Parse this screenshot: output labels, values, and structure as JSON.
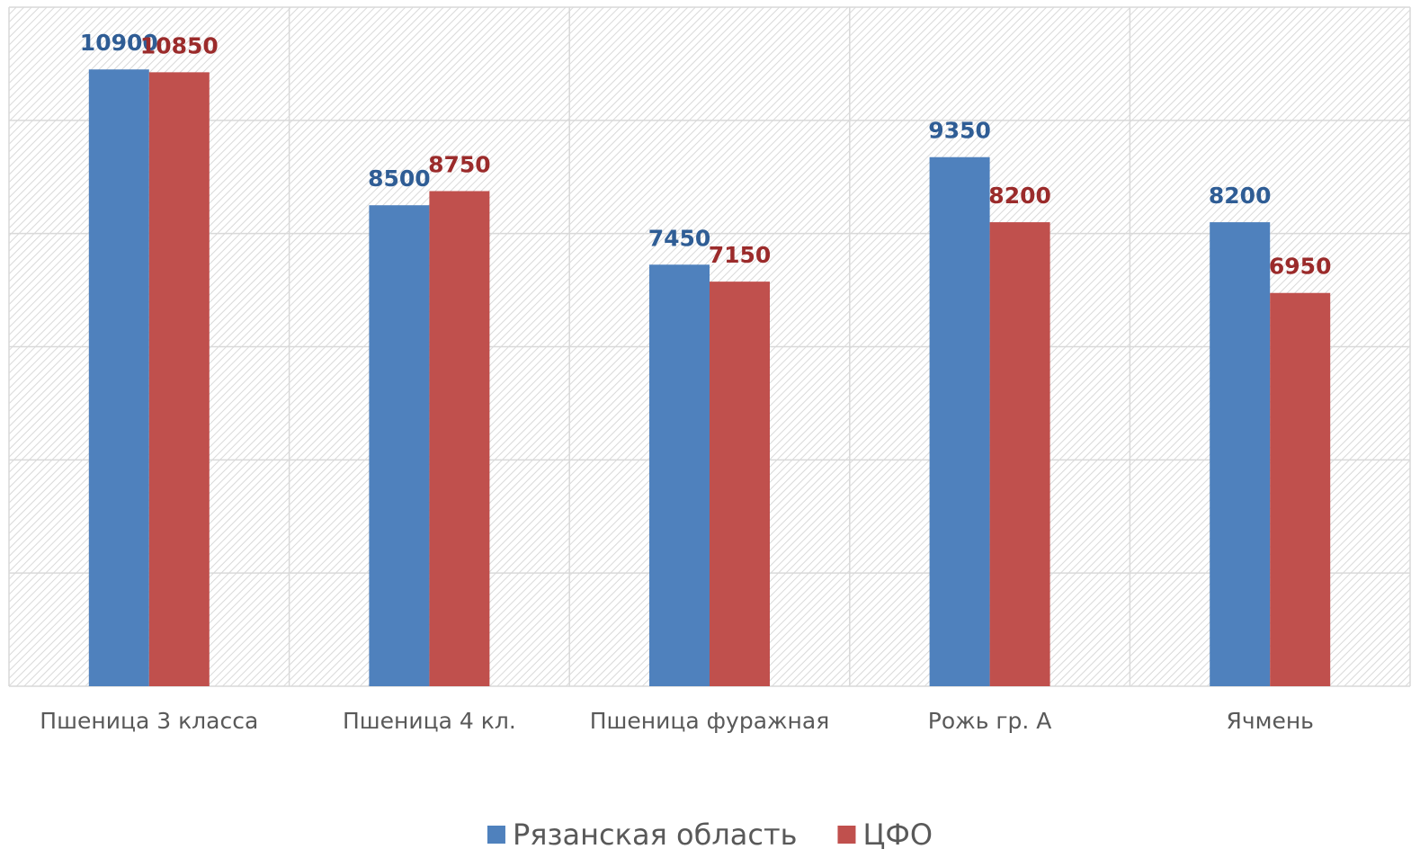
{
  "chart_data": {
    "type": "bar",
    "categories": [
      "Пшеница 3 класса",
      "Пшеница 4 кл.",
      "Пшеница фуражная",
      "Рожь гр. А",
      "Ячмень"
    ],
    "series": [
      {
        "name": "Рязанская область",
        "color": "#4f81bd",
        "label_color": "#2f5d95",
        "values": [
          10900,
          8500,
          7450,
          9350,
          8200
        ]
      },
      {
        "name": "ЦФО",
        "color": "#c0504d",
        "label_color": "#9b2b2b",
        "values": [
          10850,
          8750,
          7150,
          8200,
          6950
        ]
      }
    ],
    "ylim": [
      0,
      12000
    ],
    "yticks": [
      0,
      2000,
      4000,
      6000,
      8000,
      10000,
      12000
    ],
    "grid": true,
    "legend": "bottom"
  }
}
